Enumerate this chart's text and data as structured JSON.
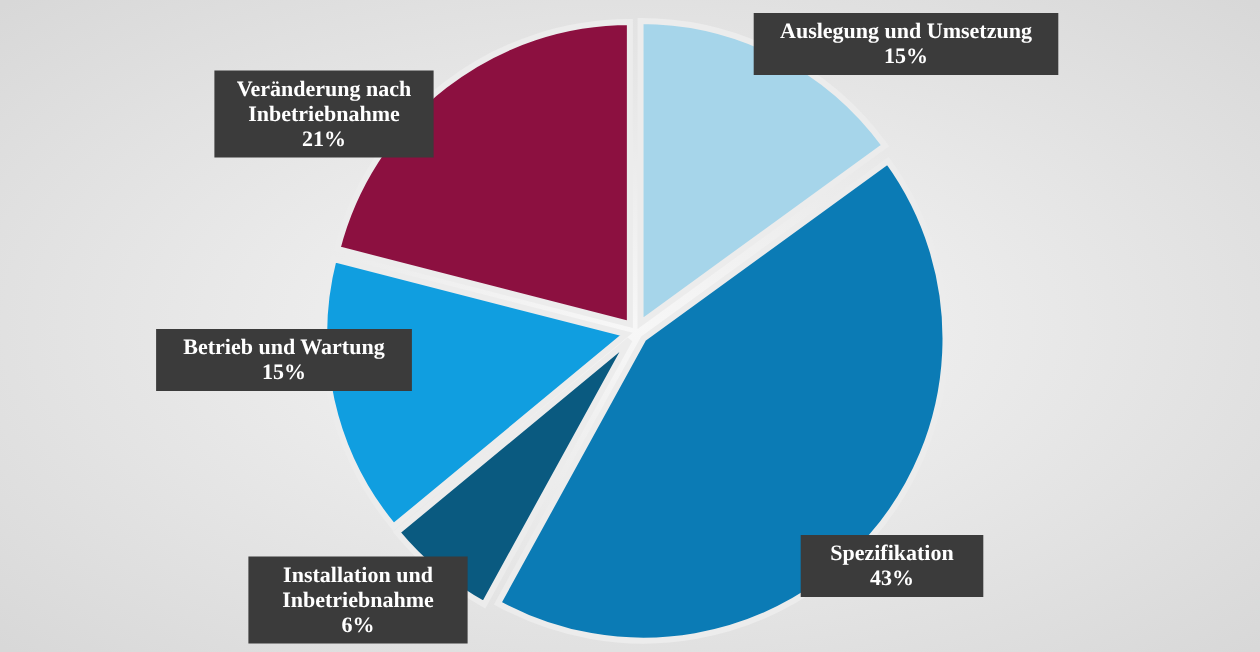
{
  "chart_data": {
    "type": "pie",
    "categories": [
      "Auslegung und Umsetzung",
      "Spezifikation",
      "Installation und Inbetriebnahme",
      "Betrieb und Wartung",
      "Veränderung nach Inbetriebnahme"
    ],
    "values": [
      15,
      43,
      6,
      15,
      21
    ],
    "colors": [
      "#a6d5ea",
      "#0b7bb5",
      "#0a5a80",
      "#109ee0",
      "#8c1040"
    ],
    "value_labels": [
      "15%",
      "43%",
      "6%",
      "15%",
      "21%"
    ]
  }
}
